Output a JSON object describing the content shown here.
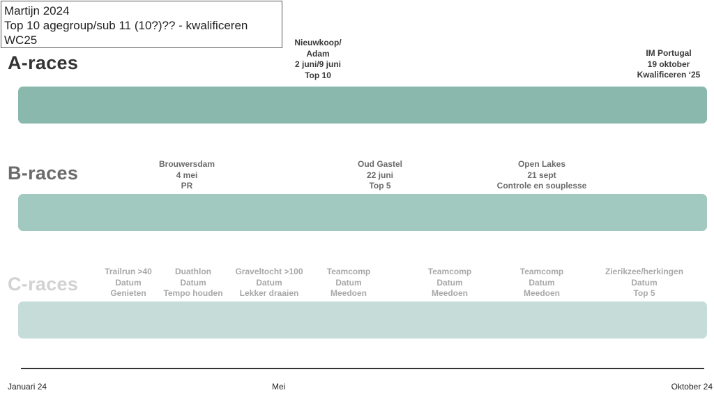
{
  "goals": {
    "line1": "Martijn 2024",
    "line2": "Top 10 agegroup/sub 11 (10?)?? - kwalificeren",
    "line3": "WC25"
  },
  "rows": {
    "a": {
      "label": "A-races",
      "label_color": "#333333",
      "band_color": "#8ab8ac",
      "text_color": "#3a3a3a",
      "races": [
        {
          "lines": [
            "Nieuwkoop/",
            "Adam",
            "2 juni/9 juni",
            "Top 10"
          ]
        },
        {
          "lines": [
            "IM Portugal",
            "19 oktober",
            "Kwalificeren ‘25"
          ]
        }
      ]
    },
    "b": {
      "label": "B-races",
      "label_color": "#6b6b6b",
      "band_color": "#a2c9bf",
      "text_color": "#6a6a6a",
      "races": [
        {
          "lines": [
            "Brouwersdam",
            "4 mei",
            "PR"
          ]
        },
        {
          "lines": [
            "Oud Gastel",
            "22 juni",
            "Top 5"
          ]
        },
        {
          "lines": [
            "Open Lakes",
            "21 sept",
            "Controle en souplesse"
          ]
        }
      ]
    },
    "c": {
      "label": "C-races",
      "label_color": "#d2d2d2",
      "band_color": "#c5dcd8",
      "text_color": "#a8a8a8",
      "races": [
        {
          "lines": [
            "Trailrun >40",
            "Datum",
            "Genieten"
          ]
        },
        {
          "lines": [
            "Duathlon",
            "Datum",
            "Tempo houden"
          ]
        },
        {
          "lines": [
            "Graveltocht >100",
            "Datum",
            "Lekker draaien"
          ]
        },
        {
          "lines": [
            "Teamcomp",
            "Datum",
            "Meedoen"
          ]
        },
        {
          "lines": [
            "Teamcomp",
            "Datum",
            "Meedoen"
          ]
        },
        {
          "lines": [
            "Teamcomp",
            "Datum",
            "Meedoen"
          ]
        },
        {
          "lines": [
            "Zierikzee/herkingen",
            "Datum",
            "Top 5"
          ]
        }
      ]
    }
  },
  "axis": {
    "start": "Januari 24",
    "middle": "Mei",
    "end": "Oktober 24"
  }
}
